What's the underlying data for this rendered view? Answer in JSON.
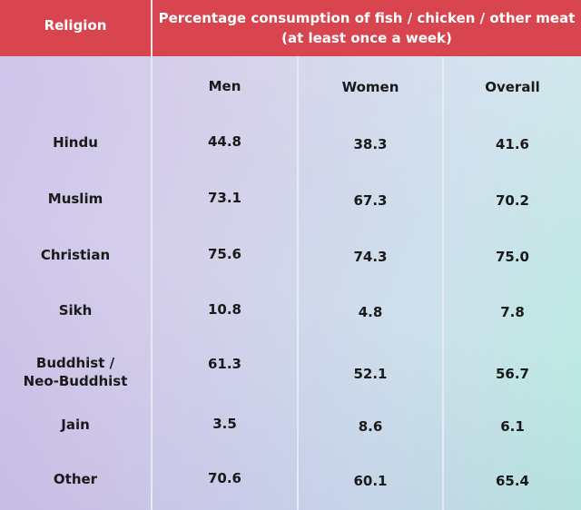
{
  "chart_data": {
    "type": "table",
    "columns": {
      "religion": "Religion",
      "measure_line1": "Percentage consumption of fish / chicken / other meat",
      "measure_line2": "(at least once a week)",
      "men": "Men",
      "women": "Women",
      "overall": "Overall"
    },
    "rows": [
      {
        "religion": [
          "Hindu"
        ],
        "men": "44.8",
        "women": "38.3",
        "overall": "41.6"
      },
      {
        "religion": [
          "Muslim"
        ],
        "men": "73.1",
        "women": "67.3",
        "overall": "70.2"
      },
      {
        "religion": [
          "Christian"
        ],
        "men": "75.6",
        "women": "74.3",
        "overall": "75.0"
      },
      {
        "religion": [
          "Sikh"
        ],
        "men": "10.8",
        "women": "4.8",
        "overall": "7.8"
      },
      {
        "religion": [
          "Buddhist /",
          "Neo-Buddhist"
        ],
        "men": "61.3",
        "women": "52.1",
        "overall": "56.7"
      },
      {
        "religion": [
          "Jain"
        ],
        "men": "3.5",
        "women": "8.6",
        "overall": "6.1"
      },
      {
        "religion": [
          "Other"
        ],
        "men": "70.6",
        "women": "60.1",
        "overall": "65.4"
      }
    ]
  }
}
